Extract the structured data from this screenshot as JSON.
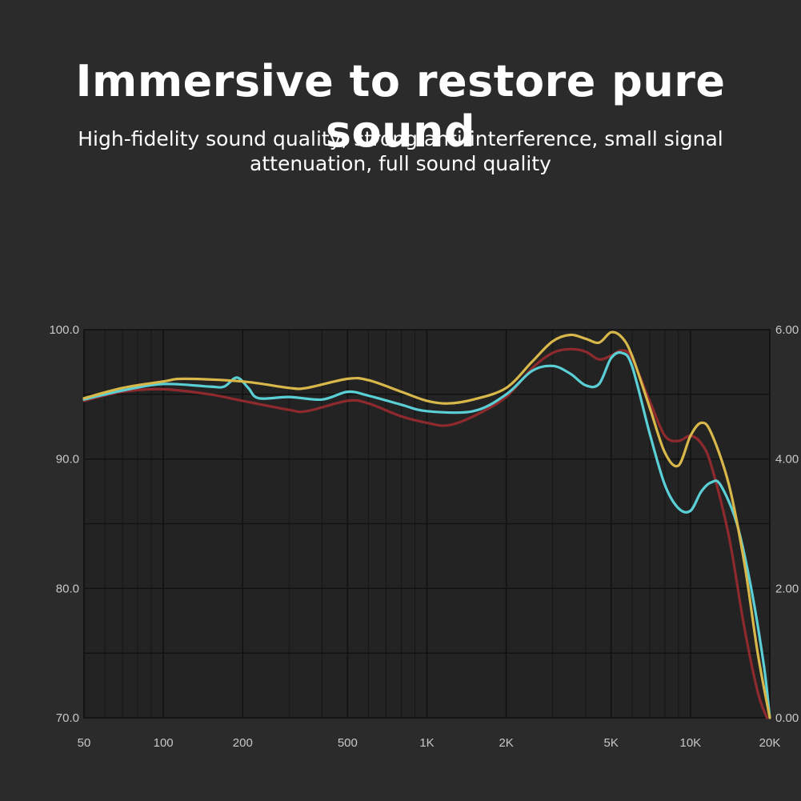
{
  "heading": {
    "title": "Immersive to restore pure sound",
    "subtitle": "High-fidelity sound quality, strong anti-interference, small signal attenuation, full sound quality"
  },
  "chart_data": {
    "type": "line",
    "title": "",
    "xlabel": "",
    "ylabel": "",
    "x_scale": "log",
    "xlim": [
      50,
      20000
    ],
    "ylim": [
      70,
      100
    ],
    "y2lim": [
      0,
      6
    ],
    "grid": true,
    "x_tick_labels": [
      {
        "v": 50,
        "t": "50"
      },
      {
        "v": 100,
        "t": "100"
      },
      {
        "v": 200,
        "t": "200"
      },
      {
        "v": 500,
        "t": "500"
      },
      {
        "v": 1000,
        "t": "1K"
      },
      {
        "v": 2000,
        "t": "2K"
      },
      {
        "v": 5000,
        "t": "5K"
      },
      {
        "v": 10000,
        "t": "10K"
      },
      {
        "v": 20000,
        "t": "20K"
      }
    ],
    "y_tick_labels": [
      {
        "v": 100,
        "t": "100.0"
      },
      {
        "v": 90,
        "t": "90.0"
      },
      {
        "v": 80,
        "t": "80.0"
      },
      {
        "v": 70,
        "t": "70.0"
      }
    ],
    "y2_tick_labels": [
      {
        "v": 6,
        "t": "6.00"
      },
      {
        "v": 4,
        "t": "4.00"
      },
      {
        "v": 2,
        "t": "2.00"
      },
      {
        "v": 0,
        "t": "0.00"
      }
    ],
    "series": [
      {
        "color": "#8e2a2e",
        "x": [
          50,
          70,
          100,
          150,
          200,
          300,
          350,
          500,
          600,
          800,
          1000,
          1200,
          1500,
          2000,
          2500,
          3000,
          3500,
          4000,
          4500,
          5000,
          5500,
          6000,
          7000,
          8000,
          9000,
          10000,
          11000,
          12000,
          14000,
          16000,
          18000,
          19500
        ],
        "y": [
          94.5,
          95.2,
          95.4,
          95.0,
          94.5,
          93.8,
          93.7,
          94.5,
          94.3,
          93.3,
          92.8,
          92.6,
          93.3,
          94.8,
          97.0,
          98.2,
          98.5,
          98.3,
          97.7,
          98.0,
          98.4,
          97.8,
          94.5,
          91.8,
          91.4,
          91.8,
          91.2,
          89.5,
          84.0,
          77.0,
          72.0,
          70.0
        ]
      },
      {
        "color": "#5bcfd6",
        "x": [
          50,
          70,
          100,
          150,
          170,
          190,
          210,
          230,
          300,
          400,
          500,
          600,
          800,
          1000,
          1500,
          2000,
          2500,
          3000,
          3500,
          4000,
          4500,
          5000,
          5500,
          6000,
          7000,
          8000,
          9000,
          10000,
          11000,
          12000,
          13000,
          15000,
          17000,
          19000,
          20000
        ],
        "y": [
          94.6,
          95.3,
          95.8,
          95.6,
          95.6,
          96.3,
          95.5,
          94.7,
          94.8,
          94.6,
          95.2,
          94.9,
          94.2,
          93.7,
          93.7,
          95.0,
          96.8,
          97.2,
          96.6,
          95.7,
          95.8,
          97.8,
          98.2,
          97.2,
          92.0,
          88.0,
          86.2,
          86.0,
          87.5,
          88.2,
          88.0,
          85.0,
          80.0,
          74.0,
          70.0
        ]
      },
      {
        "color": "#d8b84a",
        "x": [
          50,
          70,
          100,
          120,
          200,
          300,
          350,
          500,
          600,
          800,
          1000,
          1200,
          1500,
          2000,
          2500,
          3000,
          3500,
          4000,
          4500,
          5000,
          5500,
          6000,
          7000,
          8000,
          9000,
          10000,
          11000,
          12000,
          14000,
          16000,
          18000,
          20000
        ],
        "y": [
          94.7,
          95.5,
          96.0,
          96.2,
          96.0,
          95.5,
          95.5,
          96.2,
          96.1,
          95.2,
          94.5,
          94.3,
          94.6,
          95.5,
          97.5,
          99.1,
          99.6,
          99.3,
          99.0,
          99.8,
          99.4,
          98.0,
          94.0,
          90.5,
          89.5,
          91.8,
          92.8,
          92.0,
          88.0,
          82.0,
          75.0,
          70.0
        ]
      }
    ]
  }
}
